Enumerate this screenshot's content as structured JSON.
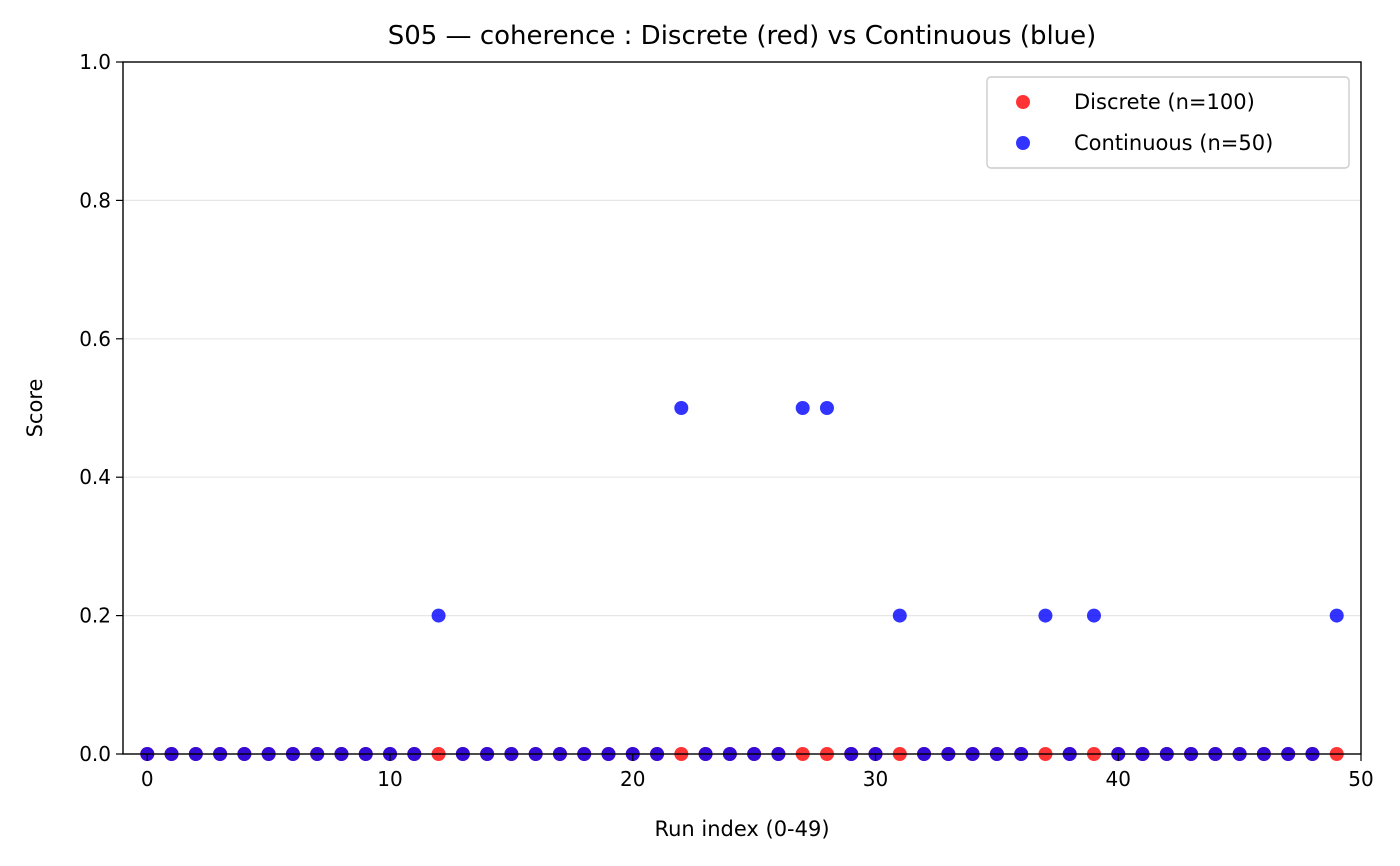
{
  "chart_data": {
    "type": "scatter",
    "title": "S05 — coherence : Discrete (red) vs Continuous (blue)",
    "xlabel": "Run index (0-49)",
    "ylabel": "Score",
    "xlim": [
      -1,
      50
    ],
    "ylim": [
      0,
      1
    ],
    "x_ticks": [
      "0",
      "10",
      "20",
      "30",
      "40",
      "50"
    ],
    "y_ticks": [
      "0.0",
      "0.2",
      "0.4",
      "0.6",
      "0.8",
      "1.0"
    ],
    "grid": "horizontal",
    "legend_position": "top-right",
    "series": [
      {
        "name": "Discrete (n=100)",
        "color": "#ff0000",
        "x": [
          0,
          1,
          2,
          3,
          4,
          5,
          6,
          7,
          8,
          9,
          10,
          11,
          12,
          13,
          14,
          15,
          16,
          17,
          18,
          19,
          20,
          21,
          22,
          23,
          24,
          25,
          26,
          27,
          28,
          29,
          30,
          31,
          32,
          33,
          34,
          35,
          36,
          37,
          38,
          39,
          40,
          41,
          42,
          43,
          44,
          45,
          46,
          47,
          48,
          49
        ],
        "y": [
          0,
          0,
          0,
          0,
          0,
          0,
          0,
          0,
          0,
          0,
          0,
          0,
          0,
          0,
          0,
          0,
          0,
          0,
          0,
          0,
          0,
          0,
          0,
          0,
          0,
          0,
          0,
          0,
          0,
          0,
          0,
          0,
          0,
          0,
          0,
          0,
          0,
          0,
          0,
          0,
          0,
          0,
          0,
          0,
          0,
          0,
          0,
          0,
          0,
          0
        ]
      },
      {
        "name": "Continuous (n=50)",
        "color": "#0000ff",
        "x": [
          0,
          1,
          2,
          3,
          4,
          5,
          6,
          7,
          8,
          9,
          10,
          11,
          12,
          13,
          14,
          15,
          16,
          17,
          18,
          19,
          20,
          21,
          22,
          23,
          24,
          25,
          26,
          27,
          28,
          29,
          30,
          31,
          32,
          33,
          34,
          35,
          36,
          37,
          38,
          39,
          40,
          41,
          42,
          43,
          44,
          45,
          46,
          47,
          48,
          49
        ],
        "y": [
          0,
          0,
          0,
          0,
          0,
          0,
          0,
          0,
          0,
          0,
          0,
          0,
          0.2,
          0,
          0,
          0,
          0,
          0,
          0,
          0,
          0,
          0,
          0.5,
          0,
          0,
          0,
          0,
          0.5,
          0.5,
          0,
          0,
          0.2,
          0,
          0,
          0,
          0,
          0,
          0.2,
          0,
          0.2,
          0,
          0,
          0,
          0,
          0,
          0,
          0,
          0,
          0,
          0.2
        ]
      }
    ]
  }
}
